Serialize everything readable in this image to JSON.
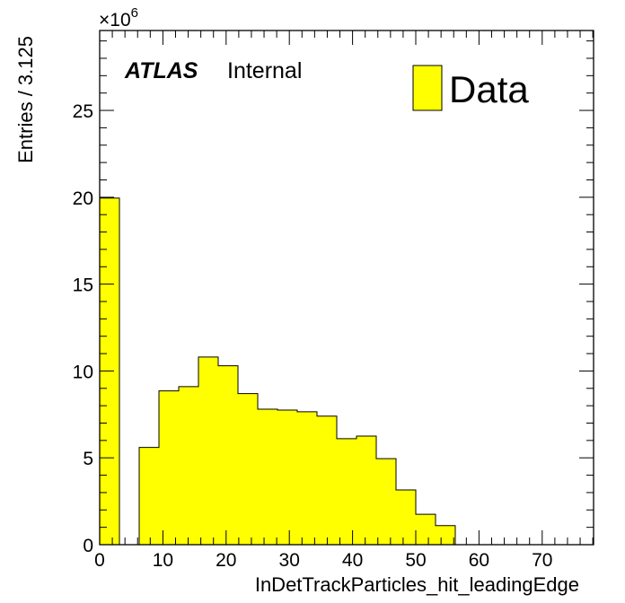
{
  "chart_data": {
    "type": "bar",
    "histogram": true,
    "bin_width": 3.125,
    "bin_edges": [
      0,
      3.125,
      6.25,
      9.375,
      12.5,
      15.625,
      18.75,
      21.875,
      25,
      28.125,
      31.25,
      34.375,
      37.5,
      40.625,
      43.75,
      46.875,
      50,
      53.125,
      56.25,
      59.375,
      62.5,
      65.625,
      68.75,
      71.875,
      75,
      78.125
    ],
    "series": [
      {
        "name": "Data",
        "color": "#ffff00",
        "values": [
          19.95,
          0,
          5.6,
          8.85,
          9.1,
          10.8,
          10.3,
          8.7,
          7.8,
          7.75,
          7.65,
          7.4,
          6.1,
          6.25,
          4.95,
          3.15,
          1.75,
          1.1,
          0,
          0,
          0,
          0,
          0,
          0,
          0
        ]
      }
    ],
    "xlabel": "InDetTrackParticles_hit_leadingEdge",
    "ylabel": "Entries / 3.125",
    "y_multiplier_label": "×10",
    "y_multiplier_exponent": "6",
    "xlim": [
      0,
      78.125
    ],
    "ylim": [
      0,
      29.6
    ],
    "x_ticks": [
      0,
      10,
      20,
      30,
      40,
      50,
      60,
      70
    ],
    "y_ticks": [
      0,
      5,
      10,
      15,
      20,
      25
    ],
    "legend_position": "top-right",
    "grid": false,
    "annotation_bold": "ATLAS",
    "annotation": "Internal"
  }
}
